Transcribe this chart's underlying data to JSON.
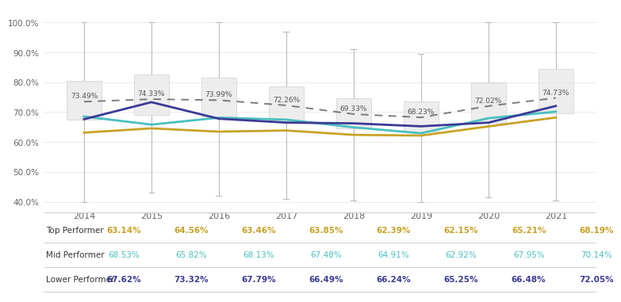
{
  "years": [
    2014,
    2015,
    2016,
    2017,
    2018,
    2019,
    2020,
    2021
  ],
  "dashed_line": [
    73.49,
    74.33,
    73.99,
    72.26,
    69.33,
    68.23,
    72.02,
    74.73
  ],
  "top_performer": [
    63.14,
    64.56,
    63.46,
    63.85,
    62.39,
    62.15,
    65.21,
    68.19
  ],
  "mid_performer": [
    68.53,
    65.82,
    68.13,
    67.48,
    64.91,
    62.92,
    67.95,
    70.14
  ],
  "lower_performer": [
    67.62,
    73.32,
    67.79,
    66.49,
    66.24,
    65.25,
    66.48,
    72.05
  ],
  "box_lower": [
    67.5,
    69.0,
    68.5,
    67.0,
    64.5,
    63.5,
    66.5,
    69.5
  ],
  "box_upper": [
    80.5,
    82.5,
    81.5,
    78.5,
    74.5,
    73.5,
    80.0,
    84.5
  ],
  "whisker_low": [
    40.0,
    43.0,
    42.0,
    41.0,
    40.5,
    40.0,
    41.5,
    40.5
  ],
  "whisker_high": [
    100.0,
    100.0,
    100.0,
    97.0,
    91.0,
    89.5,
    100.0,
    100.0
  ],
  "top_color": "#C9A227",
  "mid_color": "#4BBFBF",
  "lower_color": "#3B3B96",
  "dashed_color": "#666666",
  "box_color": "#E8E8E8",
  "box_edge_color": "#CCCCCC",
  "whisker_color": "#BBBBBB",
  "background_color": "#FFFFFF",
  "ylim": [
    38,
    105
  ],
  "yticks": [
    40.0,
    50.0,
    60.0,
    70.0,
    80.0,
    90.0,
    100.0
  ],
  "table_labels": [
    "Top Performer",
    "Mid Performer",
    "Lower Performer"
  ],
  "table_label_colors": [
    "#C9A227",
    "#4BBFBF",
    "#3B3B96"
  ],
  "table_value_weights": [
    "bold",
    "normal",
    "bold"
  ]
}
